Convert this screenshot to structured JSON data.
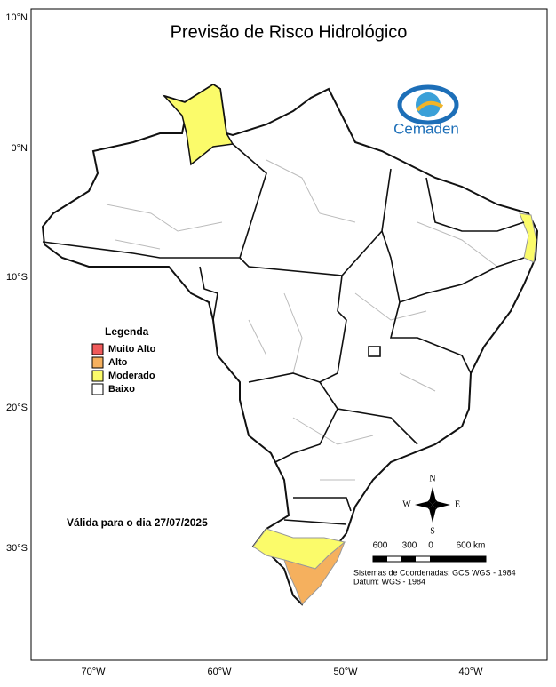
{
  "header": {
    "title": "Previsão de Risco Hidrológico"
  },
  "logo": {
    "text": "Cemaden"
  },
  "axes": {
    "lat_labels": [
      "10°N",
      "0°N",
      "10°S",
      "20°S",
      "30°S"
    ],
    "lon_labels": [
      "70°W",
      "60°W",
      "50°W",
      "40°W"
    ]
  },
  "legend": {
    "title": "Legenda",
    "items": [
      {
        "label": "Muito Alto",
        "color": "#f05a5a"
      },
      {
        "label": "Alto",
        "color": "#f5b05e"
      },
      {
        "label": "Moderado",
        "color": "#fbfb6a"
      },
      {
        "label": "Baixo",
        "color": "#ffffff"
      }
    ]
  },
  "validity": "Válida para o dia 27/07/2025",
  "compass": {
    "n": "N",
    "s": "S",
    "e": "E",
    "w": "W"
  },
  "scale": {
    "labels": [
      "600",
      "300",
      "0",
      "600 km"
    ]
  },
  "notes": [
    "Sistemas de Coordenadas: GCS WGS - 1984",
    "Datum: WGS - 1984"
  ]
}
